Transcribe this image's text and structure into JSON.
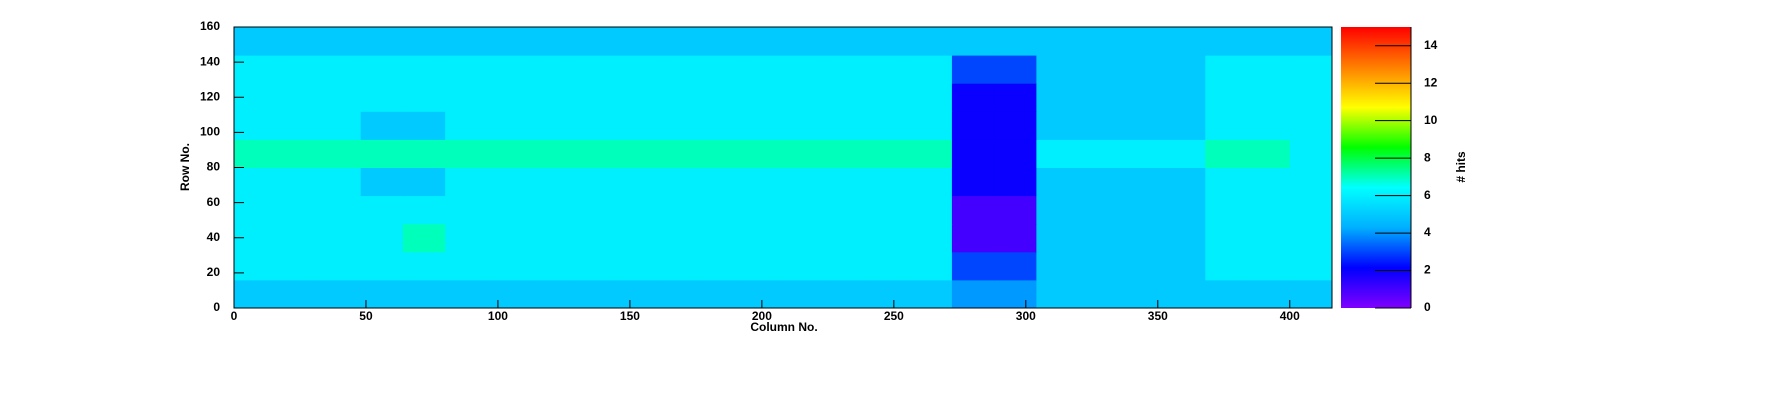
{
  "chart_data": {
    "type": "heatmap",
    "xlabel": "Column No.",
    "ylabel": "Row No.",
    "zlabel": "# hits",
    "xbins": [
      0,
      16,
      32,
      48,
      64,
      80,
      96,
      112,
      128,
      144,
      160,
      176,
      192,
      208,
      224,
      240,
      256,
      272,
      288,
      304,
      320,
      336,
      352,
      368,
      384,
      400,
      416
    ],
    "ybins": [
      0,
      16,
      32,
      48,
      64,
      80,
      96,
      112,
      128,
      144,
      160
    ],
    "z": [
      [
        5,
        5,
        5,
        5,
        5,
        5,
        5,
        5,
        5,
        5,
        5,
        5,
        5,
        5,
        5,
        5,
        5,
        4,
        4,
        5,
        5,
        5,
        5,
        5,
        5,
        5
      ],
      [
        6,
        6,
        6,
        6,
        6,
        6,
        6,
        6,
        6,
        6,
        6,
        6,
        6,
        6,
        6,
        6,
        6,
        3,
        3,
        5,
        5,
        5,
        5,
        6,
        6,
        6
      ],
      [
        6,
        6,
        6,
        6,
        7,
        6,
        6,
        6,
        6,
        6,
        6,
        6,
        6,
        6,
        6,
        6,
        6,
        1,
        1,
        5,
        5,
        5,
        5,
        6,
        6,
        6
      ],
      [
        6,
        6,
        6,
        6,
        6,
        6,
        6,
        6,
        6,
        6,
        6,
        6,
        6,
        6,
        6,
        6,
        6,
        1,
        1,
        5,
        5,
        5,
        5,
        6,
        6,
        6
      ],
      [
        6,
        6,
        6,
        5,
        5,
        6,
        6,
        6,
        6,
        6,
        6,
        6,
        6,
        6,
        6,
        6,
        6,
        2,
        2,
        5,
        5,
        5,
        5,
        6,
        6,
        6
      ],
      [
        7,
        7,
        7,
        7,
        7,
        7,
        7,
        7,
        7,
        7,
        7,
        7,
        7,
        7,
        7,
        7,
        7,
        2,
        2,
        6,
        6,
        6,
        6,
        7,
        7,
        6
      ],
      [
        6,
        6,
        6,
        5,
        5,
        6,
        6,
        6,
        6,
        6,
        6,
        6,
        6,
        6,
        6,
        6,
        6,
        2,
        2,
        5,
        5,
        5,
        5,
        6,
        6,
        6
      ],
      [
        6,
        6,
        6,
        6,
        6,
        6,
        6,
        6,
        6,
        6,
        6,
        6,
        6,
        6,
        6,
        6,
        6,
        2,
        2,
        5,
        5,
        5,
        5,
        6,
        6,
        6
      ],
      [
        6,
        6,
        6,
        6,
        6,
        6,
        6,
        6,
        6,
        6,
        6,
        6,
        6,
        6,
        6,
        6,
        6,
        3,
        3,
        5,
        5,
        5,
        5,
        6,
        6,
        6
      ],
      [
        5,
        5,
        5,
        5,
        5,
        5,
        5,
        5,
        5,
        5,
        5,
        5,
        5,
        5,
        5,
        5,
        5,
        5,
        5,
        5,
        5,
        5,
        5,
        5,
        5,
        5
      ]
    ],
    "xlim": [
      0,
      416
    ],
    "xticks": [
      0,
      50,
      100,
      150,
      200,
      250,
      300,
      350,
      400
    ],
    "ylim": [
      0,
      160
    ],
    "yticks": [
      0,
      20,
      40,
      60,
      80,
      100,
      120,
      140,
      160
    ],
    "zlim": [
      0,
      15
    ],
    "zticks": [
      0,
      2,
      4,
      6,
      8,
      10,
      12,
      14
    ],
    "palette": [
      "#8000ff",
      "#0000ff",
      "#00b0ff",
      "#00ffff",
      "#00ff00",
      "#ffff00",
      "#ff8000",
      "#ff0000"
    ]
  }
}
